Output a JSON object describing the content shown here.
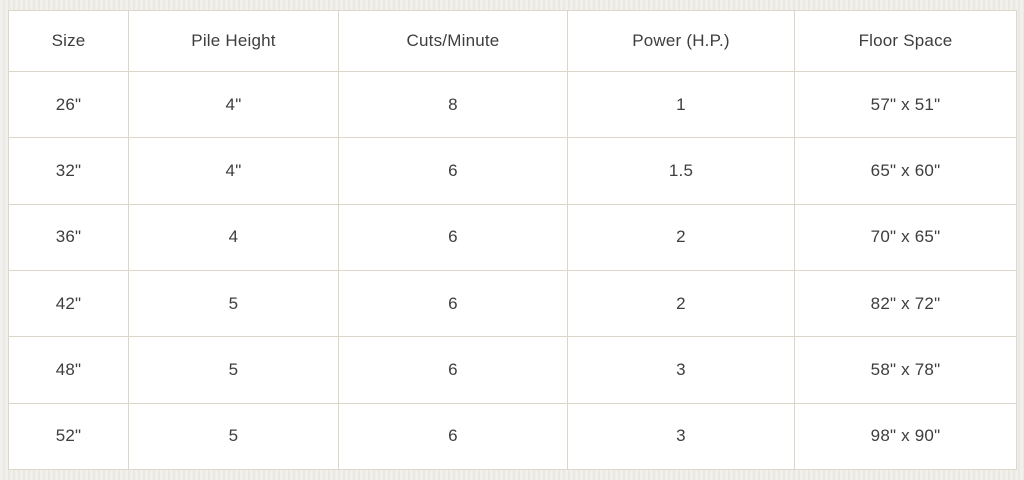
{
  "chart_data": {
    "type": "table",
    "columns": [
      "Size",
      "Pile Height",
      "Cuts/Minute",
      "Power (H.P.)",
      "Floor Space"
    ],
    "rows": [
      [
        "26\"",
        "4\"",
        "8",
        "1",
        "57\" x 51\""
      ],
      [
        "32\"",
        "4\"",
        "6",
        "1.5",
        "65\" x 60\""
      ],
      [
        "36\"",
        "4",
        "6",
        "2",
        "70\" x 65\""
      ],
      [
        "42\"",
        "5",
        "6",
        "2",
        "82\" x 72\""
      ],
      [
        "48\"",
        "5",
        "6",
        "3",
        "58\" x 78\""
      ],
      [
        "52\"",
        "5",
        "6",
        "3",
        "98\" x 90\""
      ]
    ],
    "layout": {
      "grid": "on",
      "cell_alignment": "center"
    }
  },
  "colors": {
    "page_background": "#f0eeea",
    "cell_background": "#ffffff",
    "grid_border": "#ddd7c9",
    "text": "#3e3e40"
  }
}
